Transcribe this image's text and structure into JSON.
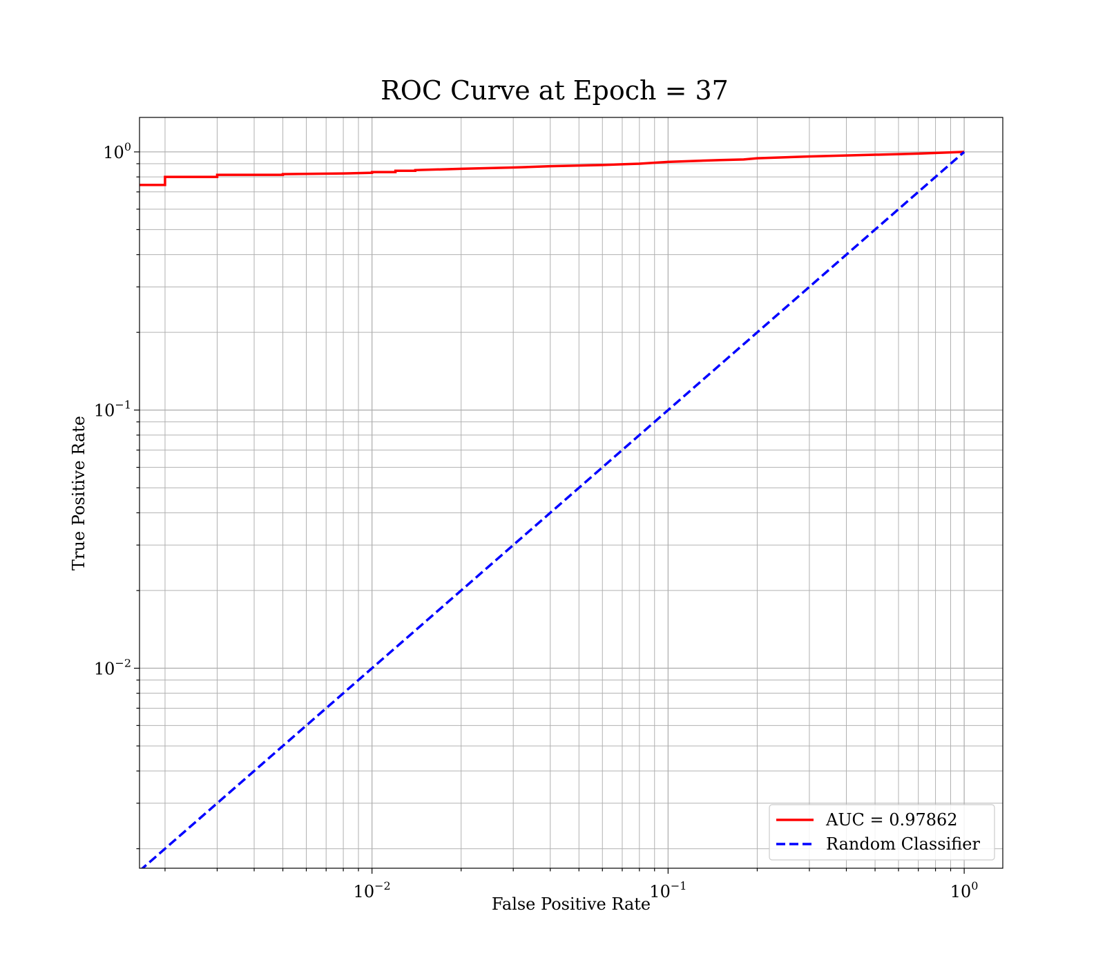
{
  "chart_data": {
    "type": "line",
    "title": "ROC Curve at Epoch = 37",
    "xlabel": "False Positive Rate",
    "ylabel": "True Positive Rate",
    "xscale": "log",
    "yscale": "log",
    "xlim": [
      0.00164,
      1.35
    ],
    "ylim": [
      0.00168,
      1.36
    ],
    "grid": true,
    "grid_minor": true,
    "legend_position": "bottom-right",
    "x_ticks": [
      {
        "value": 0.01,
        "base": "10",
        "exp": "−2"
      },
      {
        "value": 0.1,
        "base": "10",
        "exp": "−1"
      },
      {
        "value": 1,
        "base": "10",
        "exp": "0"
      }
    ],
    "y_ticks": [
      {
        "value": 0.01,
        "base": "10",
        "exp": "−2"
      },
      {
        "value": 0.1,
        "base": "10",
        "exp": "−1"
      },
      {
        "value": 1,
        "base": "10",
        "exp": "0"
      }
    ],
    "series": [
      {
        "name": "AUC = 0.97862",
        "color": "#ff0000",
        "style": "solid",
        "x": [
          0.00164,
          0.002,
          0.002,
          0.003,
          0.003,
          0.005,
          0.005,
          0.008,
          0.01,
          0.01,
          0.012,
          0.012,
          0.014,
          0.014,
          0.02,
          0.03,
          0.04,
          0.06,
          0.08,
          0.1,
          0.15,
          0.18,
          0.2,
          0.3,
          0.5,
          0.7,
          1.0
        ],
        "y": [
          0.745,
          0.745,
          0.8,
          0.8,
          0.815,
          0.815,
          0.82,
          0.825,
          0.83,
          0.835,
          0.835,
          0.845,
          0.845,
          0.85,
          0.86,
          0.87,
          0.88,
          0.89,
          0.9,
          0.915,
          0.93,
          0.935,
          0.945,
          0.96,
          0.975,
          0.985,
          1.0
        ]
      },
      {
        "name": "Random Classifier",
        "color": "#0000ff",
        "style": "dashed",
        "x": [
          0.00164,
          1.0
        ],
        "y": [
          0.00164,
          1.0
        ]
      }
    ]
  }
}
